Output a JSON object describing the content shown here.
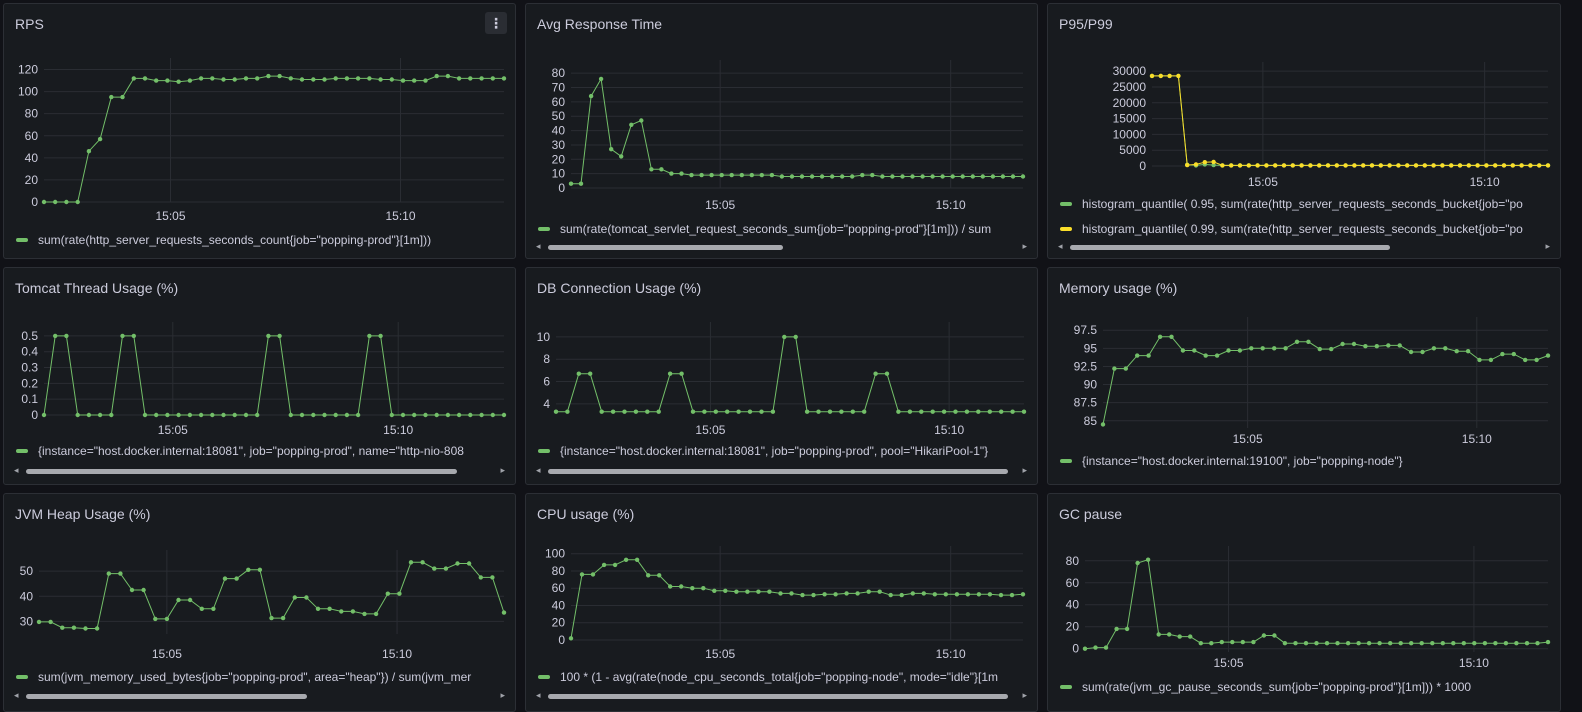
{
  "colors": {
    "green": "#73bf69",
    "yellow": "#fade2a",
    "grid": "#2a2d33"
  },
  "panels": [
    {
      "id": "rps",
      "title": "RPS",
      "legends": [
        "sum(rate(http_server_requests_seconds_count{job=\"popping-prod\"}[1m]))"
      ]
    },
    {
      "id": "avg",
      "title": "Avg Response Time",
      "legends": [
        "sum(rate(tomcat_servlet_request_seconds_sum{job=\"popping-prod\"}[1m])) / sum"
      ]
    },
    {
      "id": "p95",
      "title": "P95/P99",
      "legends": [
        "histogram_quantile( 0.95, sum(rate(http_server_requests_seconds_bucket{job=\"po",
        "histogram_quantile( 0.99, sum(rate(http_server_requests_seconds_bucket{job=\"po"
      ]
    },
    {
      "id": "thread",
      "title": "Tomcat Thread Usage (%)",
      "legends": [
        "{instance=\"host.docker.internal:18081\", job=\"popping-prod\", name=\"http-nio-808"
      ]
    },
    {
      "id": "db",
      "title": "DB Connection Usage (%)",
      "legends": [
        "{instance=\"host.docker.internal:18081\", job=\"popping-prod\", pool=\"HikariPool-1\"}"
      ]
    },
    {
      "id": "mem",
      "title": "Memory usage (%)",
      "legends": [
        "{instance=\"host.docker.internal:19100\", job=\"popping-node\"}"
      ]
    },
    {
      "id": "heap",
      "title": "JVM Heap Usage (%)",
      "legends": [
        "sum(jvm_memory_used_bytes{job=\"popping-prod\", area=\"heap\"}) / sum(jvm_mer"
      ]
    },
    {
      "id": "cpu",
      "title": "CPU usage (%)",
      "legends": [
        "100 * (1 - avg(rate(node_cpu_seconds_total{job=\"popping-node\", mode=\"idle\"}[1m"
      ]
    },
    {
      "id": "gc",
      "title": "GC pause",
      "legends": [
        "sum(rate(jvm_gc_pause_seconds_sum{job=\"popping-prod\"}[1m])) * 1000"
      ]
    }
  ],
  "chart_data": [
    {
      "type": "line",
      "title": "RPS",
      "x_ticks": [
        "15:05",
        "15:10"
      ],
      "y_ticks": [
        "0",
        "20",
        "40",
        "60",
        "80",
        "100",
        "120"
      ],
      "ylim": [
        0,
        125
      ],
      "series": [
        {
          "name": "sum(rate(http_server_requests_seconds_count{job=\"popping-prod\"}[1m]))",
          "color": "#73bf69",
          "values": [
            0,
            0,
            0,
            0,
            46,
            57,
            95,
            95,
            112,
            112,
            110,
            110,
            109,
            110,
            112,
            112,
            111,
            111,
            112,
            112,
            114,
            114,
            112,
            111,
            111,
            111,
            112,
            112,
            112,
            112,
            111,
            111,
            110,
            110,
            110,
            114,
            114,
            112,
            112,
            112,
            112,
            112
          ]
        }
      ]
    },
    {
      "type": "line",
      "title": "Avg Response Time",
      "x_ticks": [
        "15:05",
        "15:10"
      ],
      "y_ticks": [
        "0",
        "10",
        "20",
        "30",
        "40",
        "50",
        "60",
        "70",
        "80"
      ],
      "ylim": [
        0,
        85
      ],
      "series": [
        {
          "name": "sum(rate(tomcat_servlet_request_seconds_sum{job=\"popping-prod\"}[1m])) / sum",
          "color": "#73bf69",
          "values": [
            3,
            3,
            64,
            76,
            27,
            22,
            44,
            47,
            13,
            13,
            10,
            10,
            9,
            9,
            9,
            9,
            9,
            9,
            9,
            9,
            9,
            8,
            8,
            8,
            8,
            8,
            8,
            8,
            8,
            9,
            9,
            8,
            8,
            8,
            8,
            8,
            8,
            8,
            8,
            8,
            8,
            8,
            8,
            8,
            8,
            8
          ]
        }
      ]
    },
    {
      "type": "line",
      "title": "P95/P99",
      "x_ticks": [
        "15:05",
        "15:10"
      ],
      "y_ticks": [
        "0",
        "5000",
        "10000",
        "15000",
        "20000",
        "25000",
        "30000"
      ],
      "ylim": [
        0,
        31000
      ],
      "series": [
        {
          "name": "histogram_quantile( 0.95, sum(rate(http_server_requests_seconds_bucket{job=\"po",
          "color": "#73bf69",
          "values": [
            28500,
            28500,
            28500,
            28500,
            400,
            200,
            500,
            300,
            200,
            200,
            200,
            200,
            200,
            200,
            200,
            200,
            200,
            200,
            200,
            200,
            200,
            200,
            200,
            200,
            200,
            200,
            200,
            200,
            200,
            200,
            200,
            200,
            200,
            200,
            200,
            200,
            200,
            200,
            200,
            200,
            200,
            200,
            200,
            200,
            200,
            200
          ]
        },
        {
          "name": "histogram_quantile( 0.99, sum(rate(http_server_requests_seconds_bucket{job=\"po",
          "color": "#fade2a",
          "values": [
            28500,
            28500,
            28500,
            28500,
            300,
            500,
            1200,
            1300,
            200,
            200,
            200,
            200,
            200,
            200,
            200,
            200,
            200,
            200,
            200,
            200,
            200,
            200,
            200,
            200,
            200,
            200,
            200,
            200,
            200,
            200,
            200,
            200,
            200,
            200,
            200,
            200,
            200,
            200,
            200,
            200,
            200,
            200,
            200,
            200,
            200,
            200
          ]
        }
      ]
    },
    {
      "type": "line",
      "title": "Tomcat Thread Usage (%)",
      "x_ticks": [
        "15:05",
        "15:10"
      ],
      "y_ticks": [
        "0",
        "0.1",
        "0.2",
        "0.3",
        "0.4",
        "0.5"
      ],
      "ylim": [
        0,
        0.55
      ],
      "series": [
        {
          "name": "{instance=\"host.docker.internal:18081\", job=\"popping-prod\", name=\"http-nio-808",
          "color": "#73bf69",
          "values": [
            0,
            0.5,
            0.5,
            0,
            0,
            0,
            0,
            0.5,
            0.5,
            0,
            0,
            0,
            0,
            0,
            0,
            0,
            0,
            0,
            0,
            0,
            0.5,
            0.5,
            0,
            0,
            0,
            0,
            0,
            0,
            0,
            0.5,
            0.5,
            0,
            0,
            0,
            0,
            0,
            0,
            0,
            0,
            0,
            0,
            0
          ]
        }
      ]
    },
    {
      "type": "line",
      "title": "DB Connection Usage (%)",
      "x_ticks": [
        "15:05",
        "15:10"
      ],
      "y_ticks": [
        "4",
        "6",
        "8",
        "10"
      ],
      "ylim": [
        3,
        10.8
      ],
      "series": [
        {
          "name": "{instance=\"host.docker.internal:18081\", job=\"popping-prod\", pool=\"HikariPool-1\"}",
          "color": "#73bf69",
          "values": [
            3.3,
            3.3,
            6.7,
            6.7,
            3.3,
            3.3,
            3.3,
            3.3,
            3.3,
            3.3,
            6.7,
            6.7,
            3.3,
            3.3,
            3.3,
            3.3,
            3.3,
            3.3,
            3.3,
            3.3,
            10,
            10,
            3.3,
            3.3,
            3.3,
            3.3,
            3.3,
            3.3,
            6.7,
            6.7,
            3.3,
            3.3,
            3.3,
            3.3,
            3.3,
            3.3,
            3.3,
            3.3,
            3.3,
            3.3,
            3.3,
            3.3
          ]
        }
      ]
    },
    {
      "type": "line",
      "title": "Memory usage (%)",
      "x_ticks": [
        "15:05",
        "15:10"
      ],
      "y_ticks": [
        "85",
        "87.5",
        "90",
        "92.5",
        "95",
        "97.5"
      ],
      "ylim": [
        84,
        98.5
      ],
      "series": [
        {
          "name": "{instance=\"host.docker.internal:19100\", job=\"popping-node\"}",
          "color": "#73bf69",
          "values": [
            84.5,
            92.2,
            92.2,
            94,
            94,
            96.6,
            96.6,
            94.7,
            94.7,
            94,
            94,
            94.7,
            94.7,
            95,
            95,
            95,
            95,
            95.9,
            95.9,
            94.9,
            94.9,
            95.6,
            95.6,
            95.3,
            95.3,
            95.4,
            95.4,
            94.5,
            94.5,
            95,
            95,
            94.6,
            94.6,
            93.4,
            93.4,
            94.2,
            94.2,
            93.4,
            93.4,
            94
          ]
        }
      ]
    },
    {
      "type": "line",
      "title": "JVM Heap Usage (%)",
      "x_ticks": [
        "15:05",
        "15:10"
      ],
      "y_ticks": [
        "30",
        "40",
        "50"
      ],
      "ylim": [
        25,
        56
      ],
      "series": [
        {
          "name": "sum(jvm_memory_used_bytes{job=\"popping-prod\", area=\"heap\"}) / sum(jvm_mer",
          "color": "#73bf69",
          "values": [
            29.8,
            29.8,
            27.5,
            27.5,
            27.2,
            27.2,
            49,
            49,
            42.5,
            42.5,
            31,
            31,
            38.5,
            38.5,
            35,
            35,
            47,
            47,
            50.5,
            50.5,
            31.3,
            31.3,
            39.5,
            39.5,
            35,
            35,
            34,
            34,
            33,
            33,
            41,
            41,
            53.5,
            53.5,
            51,
            51,
            53,
            53,
            47.5,
            47.5,
            33.5
          ]
        }
      ]
    },
    {
      "type": "line",
      "title": "CPU usage (%)",
      "x_ticks": [
        "15:05",
        "15:10"
      ],
      "y_ticks": [
        "0",
        "20",
        "40",
        "60",
        "80",
        "100"
      ],
      "ylim": [
        0,
        102
      ],
      "series": [
        {
          "name": "100 * (1 - avg(rate(node_cpu_seconds_total{job=\"popping-node\", mode=\"idle\"}[1m",
          "color": "#73bf69",
          "values": [
            2,
            76,
            76,
            87,
            87,
            93,
            93,
            75,
            75,
            62,
            62,
            60,
            60,
            57,
            57,
            56,
            56,
            56,
            56,
            54,
            54,
            52,
            52,
            53,
            53,
            54,
            54,
            56,
            56,
            52,
            52,
            54,
            54,
            53,
            53,
            53,
            53,
            53,
            53,
            52,
            52,
            53
          ]
        }
      ]
    },
    {
      "type": "line",
      "title": "GC pause",
      "x_ticks": [
        "15:05",
        "15:10"
      ],
      "y_ticks": [
        "0",
        "20",
        "40",
        "60",
        "80"
      ],
      "ylim": [
        -3,
        88
      ],
      "series": [
        {
          "name": "sum(rate(jvm_gc_pause_seconds_sum{job=\"popping-prod\"}[1m])) * 1000",
          "color": "#73bf69",
          "values": [
            0,
            1,
            1,
            18,
            18,
            78,
            81,
            13,
            13,
            11,
            11,
            5,
            5,
            6,
            6,
            6,
            6,
            12,
            12,
            5,
            5,
            5,
            5,
            5,
            5,
            5,
            5,
            5,
            5,
            5,
            5,
            5,
            5,
            5,
            5,
            5,
            5,
            5,
            5,
            5,
            5,
            5,
            5,
            5,
            6
          ]
        }
      ]
    }
  ]
}
